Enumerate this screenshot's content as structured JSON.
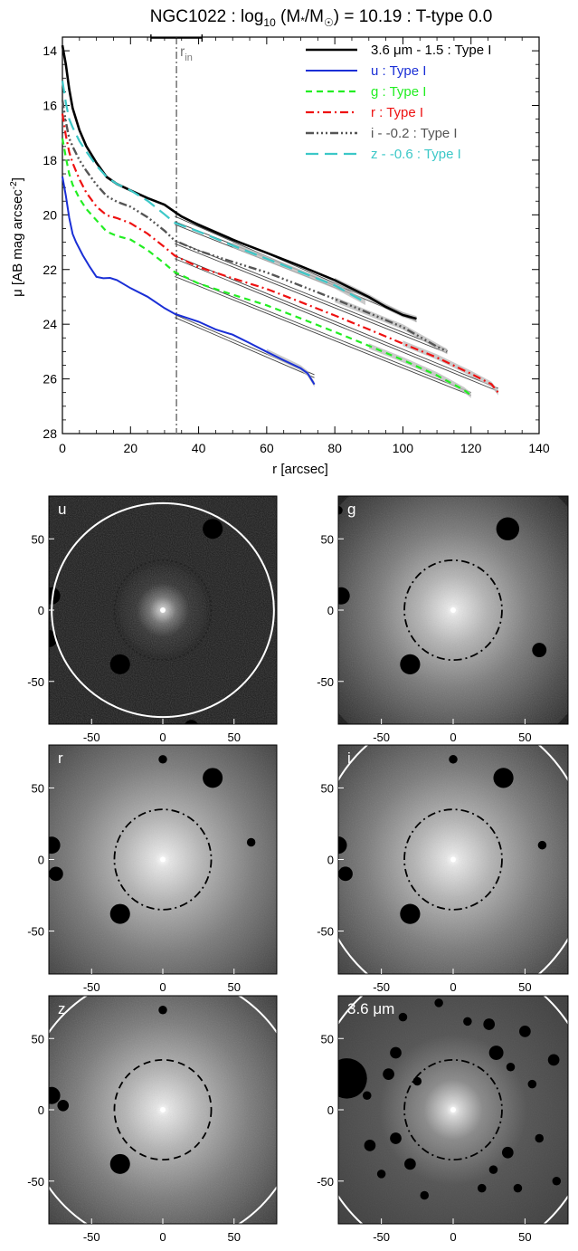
{
  "colors": {
    "black": "#000000",
    "u": "#1a2fd6",
    "g": "#22ee22",
    "r": "#ee1111",
    "i": "#555555",
    "z": "#3cc8c8",
    "fit_line": "#444444",
    "rin_line": "#7a7a7a",
    "panel_bg": "#161616",
    "ellipse_outer": "#ffffff"
  },
  "profile": {
    "title": "NGC1022 : log",
    "title_sub": "10",
    "title_mid": " (M",
    "title_star": "*",
    "title_mid2": "/M",
    "title_sun_sub": "☉",
    "title_end": ") = 10.19 : T-type 0.0",
    "rin_label": "r",
    "rin_sub": "in",
    "ylabel": "μ [AB mag arcsec",
    "ylabel_sup": "-2",
    "ylabel_end": "]",
    "xlabel": "r [arcsec]"
  },
  "chart_data": [
    {
      "type": "line",
      "title": "NGC1022 : log10 (M*/M☉) = 10.19 : T-type 0.0",
      "xlabel": "r [arcsec]",
      "ylabel": "μ [AB mag arcsec-2]",
      "xlim": [
        0,
        140
      ],
      "ylim": [
        28,
        13.5
      ],
      "y_inverted": true,
      "xticks": [
        0,
        20,
        40,
        60,
        80,
        100,
        120,
        140
      ],
      "yticks": [
        14,
        16,
        18,
        20,
        22,
        24,
        26,
        28
      ],
      "legend_position": "top-right",
      "r_in": 33.5,
      "r_in_error": [
        26,
        41
      ],
      "series": [
        {
          "name": "3.6 μm - 1.5 : Type I",
          "key": "black",
          "dash": "solid",
          "width": 2.6,
          "x": [
            0,
            1,
            2,
            3,
            5,
            7,
            10,
            13,
            16,
            20,
            25,
            30,
            33,
            35,
            40,
            50,
            60,
            70,
            80,
            90,
            95,
            100,
            104
          ],
          "y": [
            13.8,
            14.5,
            15.4,
            16.1,
            16.9,
            17.5,
            18.1,
            18.6,
            18.85,
            19.1,
            19.4,
            19.65,
            19.9,
            20.05,
            20.35,
            20.9,
            21.4,
            21.9,
            22.4,
            23.0,
            23.35,
            23.65,
            23.8
          ],
          "fit": {
            "x0": 33,
            "y0": 20.0,
            "x1": 104,
            "y1": 23.85
          }
        },
        {
          "name": "u : Type I",
          "key": "u",
          "dash": "solid",
          "width": 2.0,
          "x": [
            0,
            1,
            2,
            3,
            4,
            6,
            8,
            10,
            12,
            14,
            16,
            20,
            25,
            30,
            33,
            40,
            45,
            50,
            55,
            60,
            65,
            70,
            72,
            74
          ],
          "y": [
            18.6,
            19.3,
            20.1,
            20.7,
            21.0,
            21.5,
            21.9,
            22.25,
            22.3,
            22.3,
            22.4,
            22.7,
            23.0,
            23.4,
            23.6,
            23.9,
            24.2,
            24.4,
            24.7,
            25.0,
            25.3,
            25.6,
            25.8,
            26.2
          ],
          "fit": {
            "x0": 33,
            "y0": 23.7,
            "x1": 74,
            "y1": 25.9
          }
        },
        {
          "name": "g : Type I",
          "key": "g",
          "dash": "7,5",
          "width": 2.2,
          "x": [
            0,
            1,
            2,
            3,
            5,
            7,
            10,
            13,
            16,
            20,
            25,
            30,
            33,
            40,
            50,
            60,
            70,
            80,
            90,
            100,
            110,
            118,
            120
          ],
          "y": [
            17.2,
            17.9,
            18.5,
            18.9,
            19.4,
            19.8,
            20.2,
            20.6,
            20.75,
            20.9,
            21.3,
            21.8,
            22.1,
            22.5,
            22.9,
            23.3,
            23.8,
            24.3,
            24.8,
            25.3,
            25.85,
            26.4,
            26.6
          ],
          "fit": {
            "x0": 33,
            "y0": 22.2,
            "x1": 120,
            "y1": 26.55
          }
        },
        {
          "name": "r : Type I",
          "key": "r",
          "dash": "9,4,2,4",
          "width": 2.2,
          "x": [
            0,
            1,
            2,
            3,
            5,
            7,
            10,
            13,
            16,
            20,
            25,
            30,
            33,
            40,
            50,
            60,
            70,
            80,
            90,
            100,
            110,
            120,
            126,
            128
          ],
          "y": [
            16.3,
            17.1,
            17.7,
            18.1,
            18.7,
            19.2,
            19.7,
            20.0,
            20.1,
            20.3,
            20.7,
            21.2,
            21.5,
            21.9,
            22.3,
            22.7,
            23.2,
            23.7,
            24.2,
            24.7,
            25.2,
            25.8,
            26.2,
            26.5
          ],
          "fit": {
            "x0": 33,
            "y0": 21.55,
            "x1": 128,
            "y1": 26.4
          }
        },
        {
          "name": "i - -0.2 : Type I",
          "key": "i",
          "dash": "9,3,2,3,2,3,2,3",
          "width": 2.4,
          "x": [
            0,
            1,
            2,
            3,
            5,
            7,
            10,
            13,
            16,
            20,
            25,
            30,
            33,
            40,
            50,
            60,
            70,
            80,
            90,
            100,
            110,
            113
          ],
          "y": [
            15.8,
            16.6,
            17.2,
            17.5,
            18.0,
            18.4,
            18.9,
            19.3,
            19.5,
            19.7,
            20.1,
            20.6,
            20.95,
            21.3,
            21.7,
            22.1,
            22.6,
            23.1,
            23.6,
            24.1,
            24.8,
            25.0
          ],
          "fit": {
            "x0": 33,
            "y0": 21.0,
            "x1": 113,
            "y1": 25.0
          }
        },
        {
          "name": "z - -0.6 : Type I",
          "key": "z",
          "dash": "14,7",
          "width": 2.2,
          "x": [
            0,
            1,
            2,
            3,
            5,
            7,
            10,
            13,
            16,
            20,
            25,
            30,
            33,
            40,
            50,
            60,
            70,
            80,
            89
          ],
          "y": [
            15.1,
            15.9,
            16.5,
            16.8,
            17.3,
            17.7,
            18.2,
            18.6,
            18.85,
            19.1,
            19.5,
            20.0,
            20.3,
            20.6,
            21.1,
            21.6,
            22.1,
            22.6,
            23.2
          ],
          "fit": {
            "x0": 33,
            "y0": 20.3,
            "x1": 89,
            "y1": 23.05
          }
        }
      ]
    },
    {
      "type": "heatmap",
      "panels": [
        {
          "label": "u",
          "brightness": 0.35,
          "noise": 0.9,
          "outer_ellipse": true,
          "outer_rx": 78,
          "outer_ry": 75,
          "inner_style": "dotted-dark",
          "xticks": [
            -50,
            0,
            50
          ],
          "yticks": [
            50,
            0,
            -50
          ],
          "show_xticks": true
        },
        {
          "label": "g",
          "brightness": 0.7,
          "noise": 0.55,
          "outer_ellipse": false,
          "outer_rx": 0,
          "outer_ry": 0,
          "inner_style": "dashdot",
          "xticks": [
            -50,
            0,
            50
          ],
          "yticks": [
            50,
            0,
            -50
          ],
          "show_xticks": true
        },
        {
          "label": "r",
          "brightness": 0.85,
          "noise": 0.45,
          "outer_ellipse": false,
          "outer_rx": 0,
          "outer_ry": 0,
          "inner_style": "dashdot",
          "xticks": [
            -50,
            0,
            50
          ],
          "yticks": [
            50,
            0,
            -50
          ],
          "show_xticks": true
        },
        {
          "label": "i",
          "brightness": 0.8,
          "noise": 0.5,
          "outer_ellipse": true,
          "outer_rx": 95,
          "outer_ry": 103,
          "inner_style": "dashdot",
          "xticks": [
            -50,
            0,
            50
          ],
          "yticks": [
            50,
            0,
            -50
          ],
          "show_xticks": true
        },
        {
          "label": "z",
          "brightness": 0.8,
          "noise": 0.55,
          "outer_ellipse": true,
          "outer_rx": 97,
          "outer_ry": 96,
          "inner_style": "dashed",
          "xticks": [
            -50,
            0,
            50
          ],
          "yticks": [
            50,
            0,
            -50
          ],
          "show_xticks": true
        },
        {
          "label": "3.6 μm",
          "brightness": 0.75,
          "noise": 0.25,
          "outer_ellipse": true,
          "outer_rx": 98,
          "outer_ry": 105,
          "inner_style": "dashdot",
          "xticks": [
            -50,
            0,
            50
          ],
          "yticks": [
            50,
            0,
            -50
          ],
          "show_xticks": true
        }
      ],
      "inner_ellipse": {
        "rx": 34,
        "ry": 35
      },
      "extent": [
        -80,
        80
      ]
    }
  ]
}
